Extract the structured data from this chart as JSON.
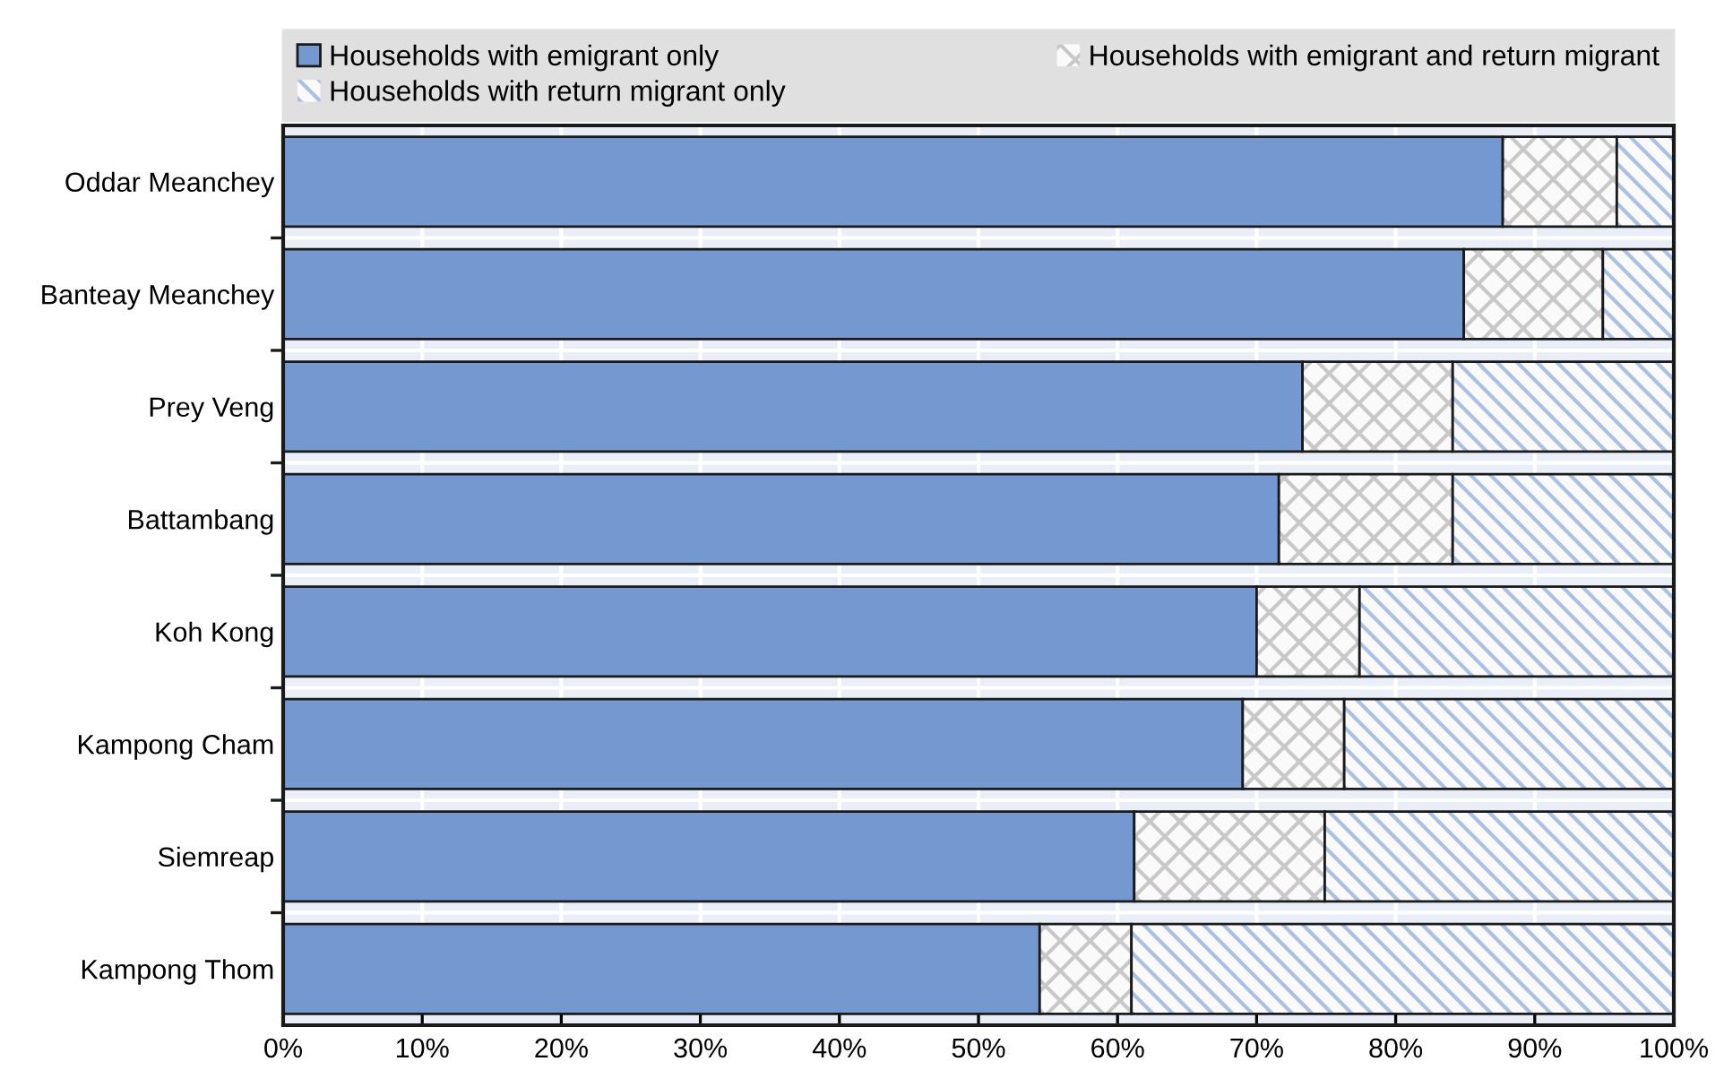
{
  "chart_data": {
    "type": "bar",
    "orientation": "horizontal",
    "stacked": true,
    "categories": [
      "Oddar Meanchey",
      "Banteay Meanchey",
      "Prey Veng",
      "Battambang",
      "Koh Kong",
      "Kampong Cham",
      "Siemreap",
      "Kampong Thom"
    ],
    "series": [
      {
        "name": "Households with emigrant only",
        "color": "#7399d0",
        "values": [
          87.7,
          84.9,
          73.3,
          71.6,
          70.0,
          69.0,
          61.2,
          54.4
        ]
      },
      {
        "name": "Households with emigrant and return migrant",
        "color": "#c8c8c8",
        "values": [
          8.2,
          10.0,
          10.8,
          12.5,
          7.4,
          7.3,
          13.7,
          6.6
        ]
      },
      {
        "name": "Households with return migrant only",
        "color": "#a9c1e6",
        "values": [
          4.1,
          5.1,
          15.9,
          15.9,
          22.6,
          23.7,
          25.1,
          39.0
        ]
      }
    ],
    "xlim": [
      0,
      100
    ],
    "xticks": [
      {
        "value": 0,
        "label": "0%"
      },
      {
        "value": 10,
        "label": "10%"
      },
      {
        "value": 20,
        "label": "20%"
      },
      {
        "value": 30,
        "label": "30%"
      },
      {
        "value": 40,
        "label": "40%"
      },
      {
        "value": 50,
        "label": "50%"
      },
      {
        "value": 60,
        "label": "60%"
      },
      {
        "value": 70,
        "label": "70%"
      },
      {
        "value": 80,
        "label": "80%"
      },
      {
        "value": 90,
        "label": "90%"
      },
      {
        "value": 100,
        "label": "100%"
      }
    ],
    "grid": true,
    "legend": "top"
  }
}
